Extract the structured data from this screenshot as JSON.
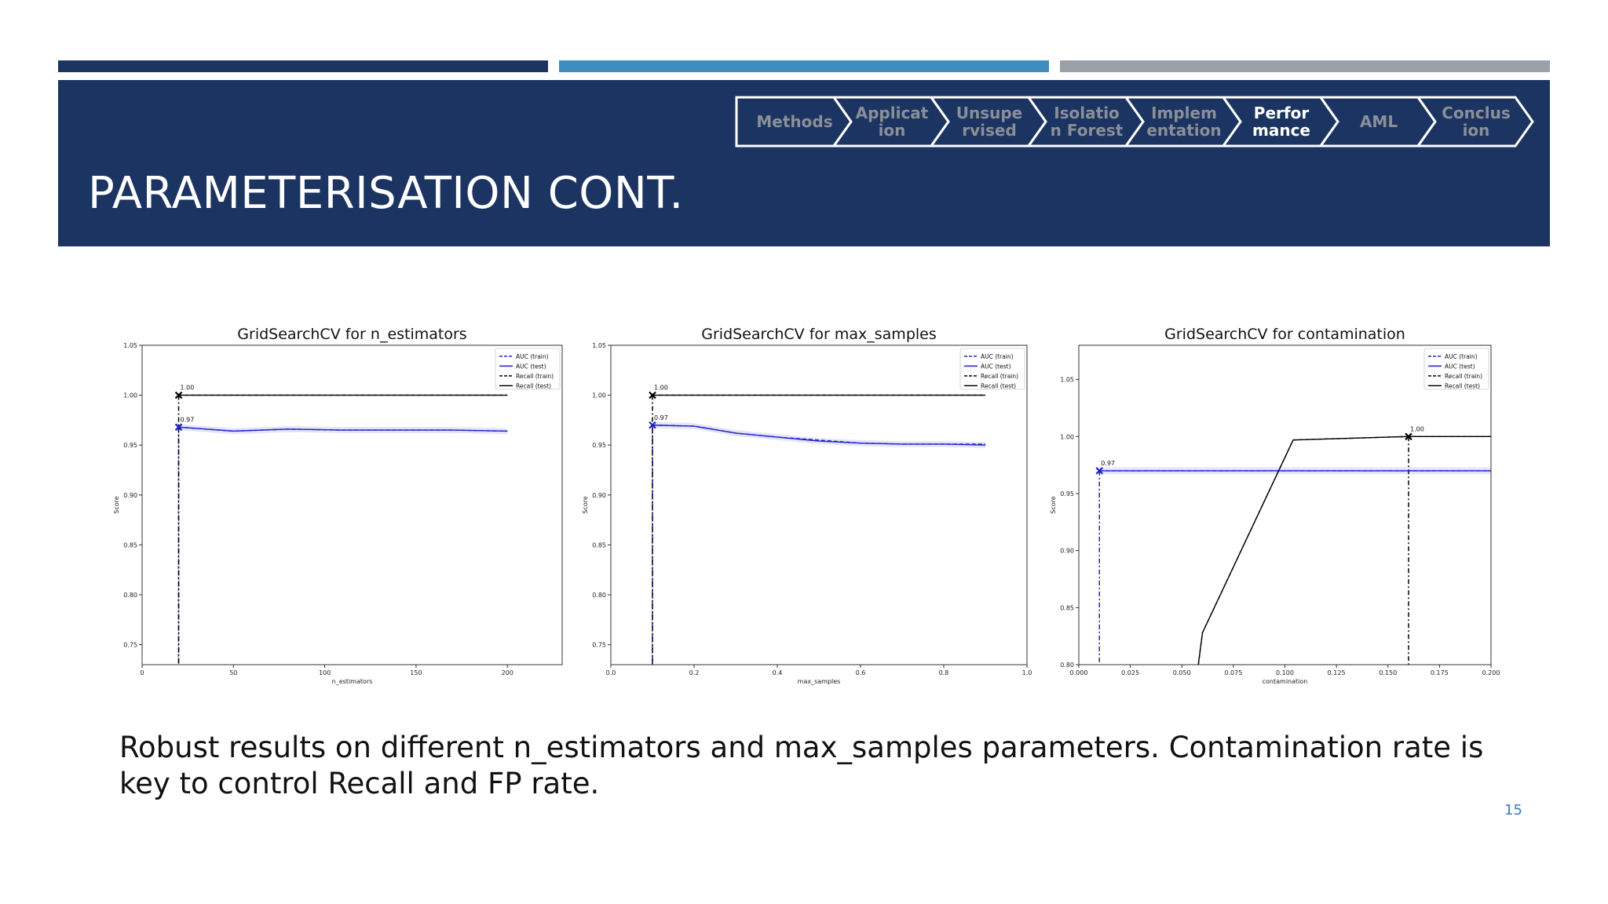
{
  "slide": {
    "title": "PARAMETERISATION CONT.",
    "caption": "Robust results on different n_estimators and max_samples parameters. Contamination rate is key to control Recall and FP rate.",
    "page_number": "15"
  },
  "nav": {
    "items": [
      {
        "lines": [
          "Methods"
        ],
        "active": false
      },
      {
        "lines": [
          "Applicat",
          "ion"
        ],
        "active": false
      },
      {
        "lines": [
          "Unsupe",
          "rvised"
        ],
        "active": false
      },
      {
        "lines": [
          "Isolatio",
          "n Forest"
        ],
        "active": false
      },
      {
        "lines": [
          "Implem",
          "entation"
        ],
        "active": false
      },
      {
        "lines": [
          "Perfor",
          "mance"
        ],
        "active": true
      },
      {
        "lines": [
          "AML"
        ],
        "active": false
      },
      {
        "lines": [
          "Conclus",
          "ion"
        ],
        "active": false
      }
    ]
  },
  "colors": {
    "header_bg": "#1c3461",
    "bar_dark": "#1c3461",
    "bar_mid": "#3f8dc0",
    "bar_gray": "#9aa1a9",
    "nav_inactive_text": "#8a8f98",
    "nav_active_text": "#ffffff",
    "auc_color": "#2020c8",
    "recall_color": "#000000"
  },
  "chart_data": [
    {
      "type": "line",
      "title": "GridSearchCV for n_estimators",
      "xlabel": "n_estimators",
      "ylabel": "Score",
      "xlim": [
        0,
        230
      ],
      "ylim": [
        0.73,
        1.05
      ],
      "xticks": [
        0,
        50,
        100,
        150,
        200
      ],
      "xtick_labels": [
        "0",
        "50",
        "100",
        "150",
        "200"
      ],
      "yticks": [
        0.75,
        0.8,
        0.85,
        0.9,
        0.95,
        1.0,
        1.05
      ],
      "ytick_labels": [
        "0.75",
        "0.80",
        "0.85",
        "0.90",
        "0.95",
        "1.00",
        "1.05"
      ],
      "legend": [
        "AUC (train)",
        "AUC (test)",
        "Recall (train)",
        "Recall (test)"
      ],
      "legend_position": "top-right",
      "series": [
        {
          "name": "AUC (train)",
          "style": "dashed",
          "color": "#2020c8",
          "x": [
            20,
            50,
            80,
            110,
            140,
            170,
            200
          ],
          "y": [
            0.968,
            0.964,
            0.966,
            0.965,
            0.965,
            0.965,
            0.964
          ]
        },
        {
          "name": "AUC (test)",
          "style": "solid",
          "color": "#2020c8",
          "x": [
            20,
            50,
            80,
            110,
            140,
            170,
            200
          ],
          "y": [
            0.968,
            0.964,
            0.966,
            0.965,
            0.965,
            0.965,
            0.964
          ]
        },
        {
          "name": "Recall (train)",
          "style": "dashed",
          "color": "#000000",
          "x": [
            20,
            200
          ],
          "y": [
            1.0,
            1.0
          ]
        },
        {
          "name": "Recall (test)",
          "style": "solid",
          "color": "#000000",
          "x": [
            20,
            200
          ],
          "y": [
            1.0,
            1.0
          ]
        }
      ],
      "best": [
        {
          "x": 20,
          "y": 0.968,
          "label": "0.97",
          "color": "#2020c8"
        },
        {
          "x": 20,
          "y": 1.0,
          "label": "1.00",
          "color": "#000000"
        }
      ]
    },
    {
      "type": "line",
      "title": "GridSearchCV for max_samples",
      "xlabel": "max_samples",
      "ylabel": "Score",
      "xlim": [
        0.0,
        1.0
      ],
      "ylim": [
        0.73,
        1.05
      ],
      "xticks": [
        0.0,
        0.2,
        0.4,
        0.6,
        0.8,
        1.0
      ],
      "xtick_labels": [
        "0.0",
        "0.2",
        "0.4",
        "0.6",
        "0.8",
        "1.0"
      ],
      "yticks": [
        0.75,
        0.8,
        0.85,
        0.9,
        0.95,
        1.0,
        1.05
      ],
      "ytick_labels": [
        "0.75",
        "0.80",
        "0.85",
        "0.90",
        "0.95",
        "1.00",
        "1.05"
      ],
      "legend": [
        "AUC (train)",
        "AUC (test)",
        "Recall (train)",
        "Recall (test)"
      ],
      "legend_position": "top-right",
      "series": [
        {
          "name": "AUC (train)",
          "style": "dashed",
          "color": "#2020c8",
          "x": [
            0.1,
            0.2,
            0.3,
            0.4,
            0.5,
            0.6,
            0.7,
            0.8,
            0.9
          ],
          "y": [
            0.97,
            0.969,
            0.962,
            0.958,
            0.955,
            0.952,
            0.951,
            0.951,
            0.951
          ]
        },
        {
          "name": "AUC (test)",
          "style": "solid",
          "color": "#2020c8",
          "x": [
            0.1,
            0.2,
            0.3,
            0.4,
            0.5,
            0.6,
            0.7,
            0.8,
            0.9
          ],
          "y": [
            0.97,
            0.969,
            0.962,
            0.958,
            0.954,
            0.952,
            0.951,
            0.951,
            0.95
          ]
        },
        {
          "name": "Recall (train)",
          "style": "dashed",
          "color": "#000000",
          "x": [
            0.1,
            0.9
          ],
          "y": [
            1.0,
            1.0
          ]
        },
        {
          "name": "Recall (test)",
          "style": "solid",
          "color": "#000000",
          "x": [
            0.1,
            0.9
          ],
          "y": [
            1.0,
            1.0
          ]
        }
      ],
      "best": [
        {
          "x": 0.1,
          "y": 0.97,
          "label": "0.97",
          "color": "#2020c8"
        },
        {
          "x": 0.1,
          "y": 1.0,
          "label": "1.00",
          "color": "#000000"
        }
      ]
    },
    {
      "type": "line",
      "title": "GridSearchCV for contamination",
      "xlabel": "contamination",
      "ylabel": "Score",
      "xlim": [
        0.0,
        0.2
      ],
      "ylim": [
        0.8,
        1.08
      ],
      "xticks": [
        0.0,
        0.025,
        0.05,
        0.075,
        0.1,
        0.125,
        0.15,
        0.175,
        0.2
      ],
      "xtick_labels": [
        "0.000",
        "0.025",
        "0.050",
        "0.075",
        "0.100",
        "0.125",
        "0.150",
        "0.175",
        "0.200"
      ],
      "yticks": [
        0.8,
        0.85,
        0.9,
        0.95,
        1.0,
        1.05
      ],
      "ytick_labels": [
        "0.80",
        "0.85",
        "0.90",
        "0.95",
        "1.00",
        "1.05"
      ],
      "legend": [
        "AUC (train)",
        "AUC (test)",
        "Recall (train)",
        "Recall (test)"
      ],
      "legend_position": "top-right",
      "series": [
        {
          "name": "AUC (train)",
          "style": "dashed",
          "color": "#2020c8",
          "x": [
            0.01,
            0.2
          ],
          "y": [
            0.97,
            0.97
          ]
        },
        {
          "name": "AUC (test)",
          "style": "solid",
          "color": "#2020c8",
          "x": [
            0.01,
            0.2
          ],
          "y": [
            0.97,
            0.97
          ]
        },
        {
          "name": "Recall (train)",
          "style": "dashed",
          "color": "#000000",
          "x": [
            0.058,
            0.06,
            0.104,
            0.16,
            0.2
          ],
          "y": [
            0.8,
            0.828,
            0.997,
            1.0,
            1.0
          ]
        },
        {
          "name": "Recall (test)",
          "style": "solid",
          "color": "#000000",
          "x": [
            0.058,
            0.06,
            0.104,
            0.16,
            0.2
          ],
          "y": [
            0.8,
            0.828,
            0.997,
            1.0,
            1.0
          ]
        }
      ],
      "best": [
        {
          "x": 0.01,
          "y": 0.97,
          "label": "0.97",
          "color": "#2020c8"
        },
        {
          "x": 0.16,
          "y": 1.0,
          "label": "1.00",
          "color": "#000000"
        }
      ]
    }
  ]
}
